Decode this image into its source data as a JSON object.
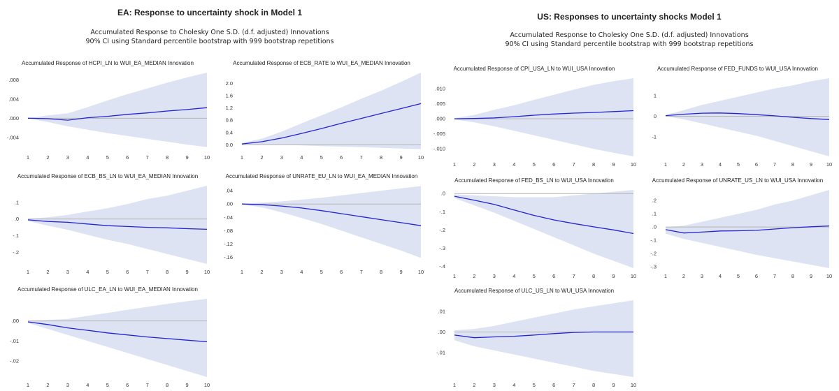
{
  "figures": [
    {
      "id": "ea",
      "title": "EA: Response to uncertainty shock in Model 1",
      "subtitle_line1": "Accumulated Response to Cholesky One S.D. (d.f. adjusted) Innovations",
      "subtitle_line2": "90% CI using Standard percentile bootstrap with 999 bootstrap repetitions"
    },
    {
      "id": "us",
      "title": "US: Responses to uncertainty shocks Model 1",
      "subtitle_line1": "Accumulated Response to Cholesky One S.D. (d.f. adjusted) Innovations",
      "subtitle_line2": "90% CI using Standard percentile bootstrap with 999 bootstrap repetitions"
    }
  ],
  "colors": {
    "line": "#2323d6",
    "band": "#dde3f3",
    "zero": "#b4b4b4"
  },
  "chart_data": [
    {
      "id": "ea-hcpi",
      "type": "area",
      "title": "Accumulated Response of HCPI_LN to WUI_EA_MEDIAN Innovation",
      "x": [
        1,
        2,
        3,
        4,
        5,
        6,
        7,
        8,
        9,
        10
      ],
      "ylim": [
        -0.0065,
        0.0095
      ],
      "yticks": [
        0.008,
        0.004,
        0.0,
        -0.004
      ],
      "yticklabels": [
        ".008",
        ".004",
        ".000",
        "-.004"
      ],
      "response": [
        0.0,
        -0.0001,
        -0.0004,
        0.0001,
        0.0004,
        0.0008,
        0.0011,
        0.0015,
        0.0018,
        0.0022
      ],
      "ci_lower": [
        0.0,
        -0.0008,
        -0.0017,
        -0.0024,
        -0.0031,
        -0.0037,
        -0.0043,
        -0.0049,
        -0.0055,
        -0.006
      ],
      "ci_upper": [
        0.0,
        0.0006,
        0.001,
        0.0023,
        0.0037,
        0.005,
        0.0062,
        0.0074,
        0.0085,
        0.0095
      ]
    },
    {
      "id": "ea-ecb-rate",
      "type": "area",
      "title": "Accumulated Response of ECB_RATE to WUI_EA_MEDIAN Innovation",
      "x": [
        1,
        2,
        3,
        4,
        5,
        6,
        7,
        8,
        9,
        10
      ],
      "ylim": [
        -0.15,
        2.35
      ],
      "yticks": [
        2.0,
        1.6,
        1.2,
        0.8,
        0.4,
        0.0
      ],
      "yticklabels": [
        "2.0",
        "1.6",
        "1.2",
        "0.8",
        "0.4",
        "0.0"
      ],
      "response": [
        0.03,
        0.1,
        0.22,
        0.37,
        0.53,
        0.7,
        0.86,
        1.02,
        1.18,
        1.34
      ],
      "ci_lower": [
        0.0,
        0.01,
        0.0,
        -0.02,
        -0.04,
        -0.06,
        -0.08,
        -0.1,
        -0.12,
        -0.14
      ],
      "ci_upper": [
        0.06,
        0.2,
        0.43,
        0.7,
        0.96,
        1.22,
        1.5,
        1.76,
        2.05,
        2.35
      ]
    },
    {
      "id": "ea-ecb-bs",
      "type": "area",
      "title": "Accumulated Response of ECB_BS_LN to WUI_EA_MEDIAN Innovation",
      "x": [
        1,
        2,
        3,
        4,
        5,
        6,
        7,
        8,
        9,
        10
      ],
      "ylim": [
        -0.27,
        0.2
      ],
      "yticks": [
        0.1,
        0.0,
        -0.1,
        -0.2
      ],
      "yticklabels": [
        ".1",
        ".0",
        "-.1",
        "-.2"
      ],
      "response": [
        -0.005,
        -0.015,
        -0.02,
        -0.03,
        -0.04,
        -0.045,
        -0.05,
        -0.053,
        -0.058,
        -0.062
      ],
      "ci_lower": [
        -0.012,
        -0.04,
        -0.065,
        -0.095,
        -0.125,
        -0.15,
        -0.18,
        -0.21,
        -0.24,
        -0.27
      ],
      "ci_upper": [
        0.002,
        0.01,
        0.025,
        0.045,
        0.065,
        0.09,
        0.12,
        0.14,
        0.17,
        0.2
      ]
    },
    {
      "id": "ea-unrate",
      "type": "area",
      "title": "Accumulated Response of UNRATE_EU_LN to WUI_EA_MEDIAN Innovation",
      "x": [
        1,
        2,
        3,
        4,
        5,
        6,
        7,
        8,
        9,
        10
      ],
      "ylim": [
        -0.18,
        0.055
      ],
      "yticks": [
        0.04,
        0.0,
        -0.04,
        -0.08,
        -0.12,
        -0.16
      ],
      "yticklabels": [
        ".04",
        ".00",
        "-.04",
        "-.08",
        "-.12",
        "-.16"
      ],
      "response": [
        0.0,
        -0.002,
        -0.006,
        -0.012,
        -0.02,
        -0.029,
        -0.038,
        -0.047,
        -0.056,
        -0.065
      ],
      "ci_lower": [
        -0.001,
        -0.01,
        -0.025,
        -0.042,
        -0.06,
        -0.08,
        -0.1,
        -0.12,
        -0.14,
        -0.162
      ],
      "ci_upper": [
        0.001,
        0.004,
        0.008,
        0.013,
        0.019,
        0.026,
        0.033,
        0.04,
        0.047,
        0.054
      ]
    },
    {
      "id": "ea-ulc",
      "type": "area",
      "title": "Accumulated Response of ULC_EA_LN to WUI_EA_MEDIAN Innovation",
      "x": [
        1,
        2,
        3,
        4,
        5,
        6,
        7,
        8,
        9,
        10
      ],
      "ylim": [
        -0.028,
        0.011
      ],
      "yticks": [
        0.0,
        -0.01,
        -0.02
      ],
      "yticklabels": [
        ".00",
        "-.01",
        "-.02"
      ],
      "response": [
        -0.0005,
        -0.0018,
        -0.0035,
        -0.0047,
        -0.006,
        -0.007,
        -0.008,
        -0.0088,
        -0.0096,
        -0.0104
      ],
      "ci_lower": [
        -0.001,
        -0.004,
        -0.007,
        -0.01,
        -0.013,
        -0.016,
        -0.019,
        -0.022,
        -0.025,
        -0.028
      ],
      "ci_upper": [
        0.0,
        0.0005,
        0.001,
        0.0025,
        0.004,
        0.0055,
        0.007,
        0.0085,
        0.0098,
        0.011
      ]
    },
    {
      "id": "us-cpi",
      "type": "area",
      "title": "Accumulated Response of CPI_USA_LN to WUI_USA Innovation",
      "x": [
        1,
        2,
        3,
        4,
        5,
        6,
        7,
        8,
        9,
        10
      ],
      "ylim": [
        -0.0125,
        0.0135
      ],
      "yticks": [
        0.01,
        0.005,
        0.0,
        -0.005,
        -0.01
      ],
      "yticklabels": [
        ".010",
        ".005",
        ".000",
        "-.005",
        "-.010"
      ],
      "response": [
        0.0,
        0.0001,
        0.0003,
        0.0007,
        0.0012,
        0.0016,
        0.0019,
        0.0021,
        0.0024,
        0.0027
      ],
      "ci_lower": [
        -0.0002,
        -0.0012,
        -0.0025,
        -0.004,
        -0.0055,
        -0.007,
        -0.0085,
        -0.01,
        -0.0113,
        -0.0125
      ],
      "ci_upper": [
        0.0002,
        0.0013,
        0.003,
        0.0045,
        0.0063,
        0.008,
        0.0097,
        0.0113,
        0.0125,
        0.0135
      ]
    },
    {
      "id": "us-fed-funds",
      "type": "area",
      "title": "Accumulated Response of FED_FUNDS to WUI_USA Innovation",
      "x": [
        1,
        2,
        3,
        4,
        5,
        6,
        7,
        8,
        9,
        10
      ],
      "ylim": [
        -1.95,
        1.85
      ],
      "yticks": [
        1,
        0,
        -1
      ],
      "yticklabels": [
        "1",
        "0",
        "-1"
      ],
      "response": [
        0.03,
        0.1,
        0.15,
        0.16,
        0.13,
        0.08,
        0.02,
        -0.05,
        -0.11,
        -0.16
      ],
      "ci_lower": [
        0.0,
        -0.15,
        -0.35,
        -0.55,
        -0.75,
        -0.95,
        -1.2,
        -1.45,
        -1.7,
        -1.95
      ],
      "ci_upper": [
        0.06,
        0.3,
        0.55,
        0.75,
        0.95,
        1.15,
        1.35,
        1.5,
        1.7,
        1.85
      ]
    },
    {
      "id": "us-fed-bs",
      "type": "area",
      "title": "Accumulated Response of FED_BS_LN to WUI_USA Innovation",
      "x": [
        1,
        2,
        3,
        4,
        5,
        6,
        7,
        8,
        9,
        10
      ],
      "ylim": [
        -0.41,
        0.02
      ],
      "yticks": [
        0.0,
        -0.1,
        -0.2,
        -0.3,
        -0.4
      ],
      "yticklabels": [
        ".0",
        "-.1",
        "-.2",
        "-.3",
        "-.4"
      ],
      "response": [
        -0.015,
        -0.037,
        -0.06,
        -0.09,
        -0.12,
        -0.145,
        -0.165,
        -0.183,
        -0.2,
        -0.22
      ],
      "ci_lower": [
        -0.025,
        -0.065,
        -0.105,
        -0.15,
        -0.195,
        -0.24,
        -0.285,
        -0.33,
        -0.37,
        -0.41
      ],
      "ci_upper": [
        -0.005,
        -0.01,
        -0.015,
        -0.02,
        -0.02,
        -0.02,
        -0.01,
        0.0,
        0.01,
        0.02
      ]
    },
    {
      "id": "us-unrate",
      "type": "area",
      "title": "Accumulated Response of UNRATE_US_LN to WUI_USA Innovation",
      "x": [
        1,
        2,
        3,
        4,
        5,
        6,
        7,
        8,
        9,
        10
      ],
      "ylim": [
        -0.31,
        0.28
      ],
      "yticks": [
        0.2,
        0.1,
        0.0,
        -0.1,
        -0.2,
        -0.3
      ],
      "yticklabels": [
        ".2",
        ".1",
        ".0",
        "-.1",
        "-.2",
        "-.3"
      ],
      "response": [
        -0.02,
        -0.045,
        -0.038,
        -0.03,
        -0.028,
        -0.025,
        -0.015,
        -0.005,
        0.002,
        0.008
      ],
      "ci_lower": [
        -0.05,
        -0.09,
        -0.12,
        -0.15,
        -0.18,
        -0.21,
        -0.235,
        -0.26,
        -0.285,
        -0.31
      ],
      "ci_upper": [
        0.0,
        0.01,
        0.04,
        0.07,
        0.1,
        0.13,
        0.17,
        0.2,
        0.24,
        0.28
      ]
    },
    {
      "id": "us-ulc",
      "type": "area",
      "title": "Accumulated Response of ULC_US_LN to WUI_USA Innovation",
      "x": [
        1,
        2,
        3,
        4,
        5,
        6,
        7,
        8,
        9,
        10
      ],
      "ylim": [
        -0.022,
        0.0155
      ],
      "yticks": [
        0.01,
        0.0,
        -0.01
      ],
      "yticklabels": [
        ".01",
        ".00",
        "-.01"
      ],
      "response": [
        -0.0015,
        -0.0028,
        -0.0024,
        -0.0021,
        -0.0015,
        -0.0008,
        -0.0002,
        0.0,
        0.0,
        0.0
      ],
      "ci_lower": [
        -0.004,
        -0.007,
        -0.009,
        -0.011,
        -0.013,
        -0.015,
        -0.017,
        -0.019,
        -0.0205,
        -0.022
      ],
      "ci_upper": [
        0.0008,
        0.0015,
        0.003,
        0.005,
        0.007,
        0.009,
        0.011,
        0.0125,
        0.014,
        0.0155
      ]
    }
  ]
}
